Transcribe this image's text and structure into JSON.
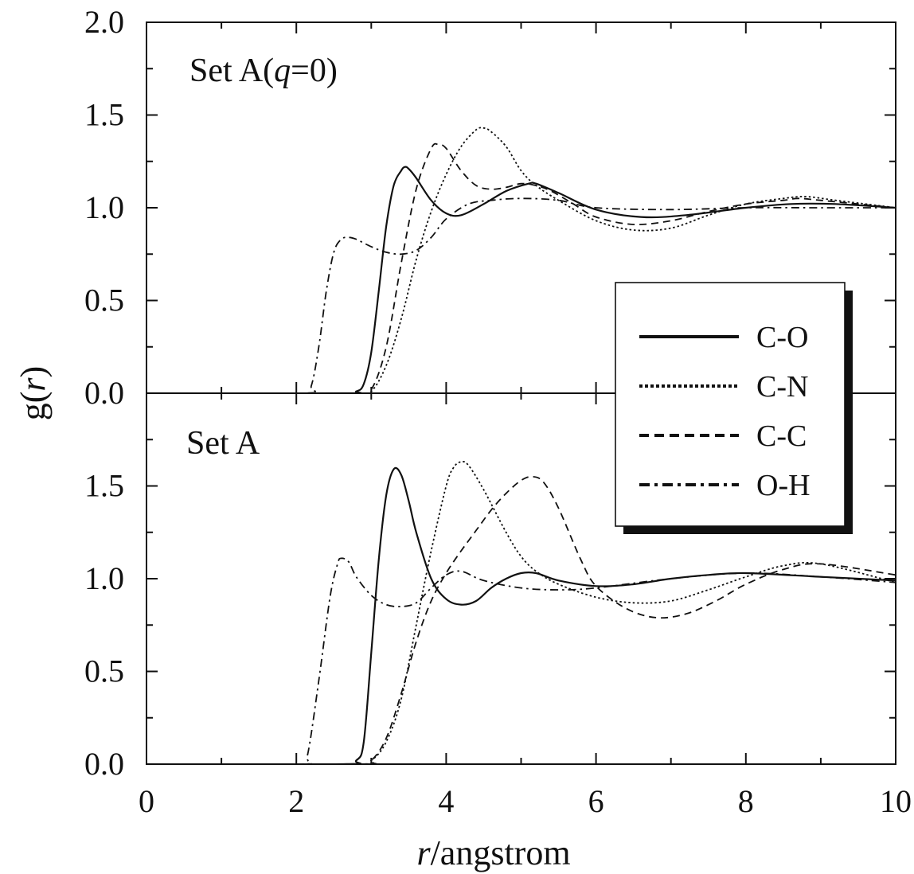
{
  "chart_data": [
    {
      "type": "line",
      "panel_label": [
        "Set A(",
        "q",
        "=0)"
      ],
      "xlabel": [
        "r",
        "/angstrom"
      ],
      "ylabel": [
        "g(",
        "r",
        ")"
      ],
      "xlim": [
        0,
        10
      ],
      "ylim": [
        0,
        2.0
      ],
      "x_ticks": [
        "0",
        "2",
        "4",
        "6",
        "8",
        "10"
      ],
      "y_ticks": [
        "0.0",
        "0.5",
        "1.0",
        "1.5",
        "2.0"
      ],
      "grid": false,
      "legend_position": "right",
      "series": [
        {
          "name": "C-O",
          "style": "solid",
          "x": [
            0,
            2.6,
            2.8,
            2.9,
            3.0,
            3.1,
            3.2,
            3.3,
            3.4,
            3.45,
            3.5,
            3.6,
            3.8,
            4.0,
            4.2,
            4.5,
            4.8,
            5.1,
            5.2,
            5.5,
            6.0,
            6.6,
            7.2,
            8.0,
            8.6,
            9.2,
            10.0
          ],
          "y": [
            0,
            0,
            0.01,
            0.05,
            0.22,
            0.55,
            0.9,
            1.12,
            1.2,
            1.22,
            1.21,
            1.16,
            1.04,
            0.97,
            0.96,
            1.02,
            1.09,
            1.13,
            1.13,
            1.08,
            0.99,
            0.95,
            0.96,
            1.0,
            1.02,
            1.02,
            1.0
          ]
        },
        {
          "name": "C-N",
          "style": "dotted",
          "x": [
            0,
            2.8,
            3.0,
            3.2,
            3.4,
            3.6,
            3.8,
            4.0,
            4.2,
            4.4,
            4.5,
            4.6,
            4.8,
            5.0,
            5.2,
            5.5,
            6.0,
            6.5,
            7.0,
            7.5,
            8.0,
            8.5,
            8.8,
            9.2,
            10.0
          ],
          "y": [
            0,
            0,
            0.01,
            0.15,
            0.4,
            0.72,
            0.98,
            1.18,
            1.33,
            1.42,
            1.43,
            1.41,
            1.33,
            1.2,
            1.12,
            1.04,
            0.93,
            0.88,
            0.89,
            0.96,
            1.02,
            1.05,
            1.06,
            1.04,
            1.0
          ]
        },
        {
          "name": "C-C",
          "style": "dashed",
          "x": [
            0,
            2.8,
            3.0,
            3.2,
            3.4,
            3.6,
            3.8,
            3.9,
            4.0,
            4.2,
            4.4,
            4.6,
            4.8,
            5.0,
            5.2,
            5.4,
            5.7,
            6.0,
            6.5,
            7.0,
            7.5,
            8.0,
            8.5,
            8.7,
            9.0,
            10.0
          ],
          "y": [
            0,
            0,
            0.02,
            0.25,
            0.7,
            1.1,
            1.32,
            1.34,
            1.32,
            1.2,
            1.12,
            1.1,
            1.11,
            1.13,
            1.12,
            1.09,
            1.02,
            0.95,
            0.91,
            0.93,
            0.98,
            1.02,
            1.04,
            1.05,
            1.04,
            1.0
          ]
        },
        {
          "name": "O-H",
          "style": "dashdot",
          "x": [
            0,
            2.1,
            2.2,
            2.3,
            2.4,
            2.5,
            2.6,
            2.7,
            2.8,
            3.0,
            3.2,
            3.4,
            3.6,
            3.8,
            4.0,
            4.3,
            4.6,
            5.0,
            5.5,
            6.0,
            7.0,
            8.0,
            9.0,
            10.0
          ],
          "y": [
            0,
            0,
            0.04,
            0.25,
            0.55,
            0.76,
            0.83,
            0.84,
            0.83,
            0.79,
            0.76,
            0.75,
            0.77,
            0.84,
            0.94,
            1.02,
            1.04,
            1.05,
            1.04,
            1.0,
            0.99,
            1.0,
            1.0,
            1.0
          ]
        }
      ]
    },
    {
      "type": "line",
      "panel_label": [
        "Set A",
        "",
        ""
      ],
      "xlabel": [
        "r",
        "/angstrom"
      ],
      "ylabel": [
        "g(",
        "r",
        ")"
      ],
      "xlim": [
        0,
        10
      ],
      "ylim": [
        0,
        2.0
      ],
      "x_ticks": [
        "0",
        "2",
        "4",
        "6",
        "8",
        "10"
      ],
      "y_ticks": [
        "0.0",
        "0.5",
        "1.0",
        "1.5"
      ],
      "grid": false,
      "legend_position": "right",
      "series": [
        {
          "name": "C-O",
          "style": "solid",
          "x": [
            0,
            2.6,
            2.8,
            2.9,
            3.0,
            3.1,
            3.2,
            3.3,
            3.4,
            3.5,
            3.6,
            3.8,
            4.0,
            4.2,
            4.4,
            4.6,
            4.8,
            5.0,
            5.2,
            5.5,
            6.0,
            6.5,
            7.0,
            7.5,
            8.0,
            9.0,
            10.0
          ],
          "y": [
            0,
            0,
            0.02,
            0.12,
            0.6,
            1.1,
            1.45,
            1.59,
            1.56,
            1.42,
            1.25,
            1.0,
            0.89,
            0.86,
            0.88,
            0.95,
            1.0,
            1.03,
            1.03,
            0.99,
            0.96,
            0.97,
            1.0,
            1.02,
            1.03,
            1.01,
            0.99
          ]
        },
        {
          "name": "C-N",
          "style": "dotted",
          "x": [
            0,
            2.8,
            3.0,
            3.2,
            3.4,
            3.6,
            3.8,
            4.0,
            4.1,
            4.2,
            4.3,
            4.5,
            4.8,
            5.0,
            5.2,
            5.5,
            6.0,
            6.5,
            7.0,
            7.5,
            8.0,
            8.5,
            9.0,
            10.0
          ],
          "y": [
            0,
            0,
            0.02,
            0.12,
            0.35,
            0.75,
            1.15,
            1.5,
            1.6,
            1.63,
            1.61,
            1.48,
            1.25,
            1.12,
            1.04,
            0.97,
            0.9,
            0.87,
            0.88,
            0.94,
            1.01,
            1.07,
            1.08,
            0.98
          ]
        },
        {
          "name": "C-C",
          "style": "dashed",
          "x": [
            0,
            2.8,
            3.0,
            3.2,
            3.4,
            3.6,
            3.8,
            4.0,
            4.2,
            4.4,
            4.6,
            4.8,
            5.0,
            5.15,
            5.3,
            5.5,
            5.8,
            6.0,
            6.4,
            6.8,
            7.2,
            7.6,
            8.0,
            8.5,
            9.0,
            10.0
          ],
          "y": [
            0,
            0,
            0.02,
            0.14,
            0.38,
            0.66,
            0.88,
            1.03,
            1.15,
            1.26,
            1.37,
            1.46,
            1.53,
            1.55,
            1.52,
            1.38,
            1.1,
            0.96,
            0.84,
            0.79,
            0.81,
            0.88,
            0.97,
            1.05,
            1.08,
            1.02
          ]
        },
        {
          "name": "O-H",
          "style": "dashdot",
          "x": [
            0,
            2.05,
            2.15,
            2.3,
            2.45,
            2.55,
            2.6,
            2.7,
            2.8,
            3.0,
            3.2,
            3.4,
            3.6,
            3.8,
            4.0,
            4.2,
            4.5,
            5.0,
            5.5,
            6.0,
            7.0,
            8.0,
            9.0,
            10.0
          ],
          "y": [
            0,
            0,
            0.05,
            0.45,
            0.9,
            1.08,
            1.11,
            1.09,
            1.01,
            0.91,
            0.86,
            0.85,
            0.87,
            0.95,
            1.02,
            1.04,
            0.99,
            0.95,
            0.94,
            0.95,
            1.0,
            1.03,
            1.01,
            0.98
          ]
        }
      ]
    }
  ]
}
